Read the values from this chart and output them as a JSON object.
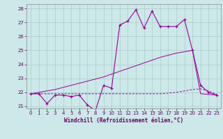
{
  "xlabel": "Windchill (Refroidissement éolien,°C)",
  "bg_color": "#cce8e8",
  "grid_color": "#aacccc",
  "line_color": "#990099",
  "x": [
    0,
    1,
    2,
    3,
    4,
    5,
    6,
    7,
    8,
    9,
    10,
    11,
    12,
    13,
    14,
    15,
    16,
    17,
    18,
    19,
    20,
    21,
    22,
    23
  ],
  "spiky": [
    21.9,
    21.9,
    21.2,
    21.8,
    21.8,
    21.7,
    21.8,
    21.1,
    20.7,
    22.5,
    22.3,
    26.8,
    27.1,
    27.9,
    26.6,
    27.8,
    26.7,
    26.7,
    26.7,
    27.2,
    25.0,
    22.5,
    22.0,
    21.8
  ],
  "diagonal": [
    21.9,
    22.0,
    22.1,
    22.2,
    22.35,
    22.5,
    22.65,
    22.8,
    22.95,
    23.1,
    23.3,
    23.5,
    23.7,
    23.9,
    24.1,
    24.3,
    24.5,
    24.65,
    24.8,
    24.9,
    25.0,
    21.9,
    21.85,
    21.8
  ],
  "flat_dashed": [
    21.9,
    21.9,
    21.9,
    21.9,
    21.9,
    21.9,
    21.9,
    21.9,
    21.9,
    21.9,
    21.9,
    21.9,
    21.9,
    21.9,
    21.9,
    21.9,
    21.9,
    21.95,
    22.0,
    22.1,
    22.2,
    22.25,
    22.1,
    21.85
  ],
  "ylim": [
    20.85,
    28.3
  ],
  "yticks": [
    21,
    22,
    23,
    24,
    25,
    26,
    27,
    28
  ],
  "xticks": [
    0,
    1,
    2,
    3,
    4,
    5,
    6,
    7,
    8,
    9,
    10,
    11,
    12,
    13,
    14,
    15,
    16,
    17,
    18,
    19,
    20,
    21,
    22,
    23
  ],
  "xlabel_fontsize": 5.5,
  "tick_fontsize": 5.0
}
